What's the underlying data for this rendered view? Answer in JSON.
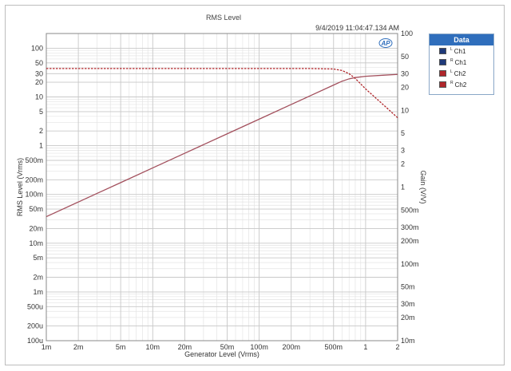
{
  "chart_data": {
    "type": "line",
    "title": "RMS Level",
    "timestamp": "9/4/2019 11:04:47.134 AM",
    "xlabel": "Generator Level (Vrms)",
    "ylabel_left": "RMS Level (Vrms)",
    "ylabel_right": "Gain (V/V)",
    "xscale": "log",
    "yscale_left": "log",
    "yscale_right": "log",
    "xlim": [
      0.001,
      2
    ],
    "ylim_left": [
      0.0001,
      200
    ],
    "ylim_right": [
      0.01,
      100
    ],
    "grid": true,
    "legend_position": "right",
    "x_ticks": [
      {
        "v": 0.001,
        "label": "1m"
      },
      {
        "v": 0.002,
        "label": "2m"
      },
      {
        "v": 0.005,
        "label": "5m"
      },
      {
        "v": 0.01,
        "label": "10m"
      },
      {
        "v": 0.02,
        "label": "20m"
      },
      {
        "v": 0.05,
        "label": "50m"
      },
      {
        "v": 0.1,
        "label": "100m"
      },
      {
        "v": 0.2,
        "label": "200m"
      },
      {
        "v": 0.5,
        "label": "500m"
      },
      {
        "v": 1,
        "label": "1"
      },
      {
        "v": 2,
        "label": "2"
      }
    ],
    "y_left_ticks": [
      {
        "v": 0.0001,
        "label": "100u"
      },
      {
        "v": 0.0002,
        "label": "200u"
      },
      {
        "v": 0.0005,
        "label": "500u"
      },
      {
        "v": 0.001,
        "label": "1m"
      },
      {
        "v": 0.002,
        "label": "2m"
      },
      {
        "v": 0.005,
        "label": "5m"
      },
      {
        "v": 0.01,
        "label": "10m"
      },
      {
        "v": 0.02,
        "label": "20m"
      },
      {
        "v": 0.05,
        "label": "50m"
      },
      {
        "v": 0.1,
        "label": "100m"
      },
      {
        "v": 0.2,
        "label": "200m"
      },
      {
        "v": 0.5,
        "label": "500m"
      },
      {
        "v": 1,
        "label": "1"
      },
      {
        "v": 2,
        "label": "2"
      },
      {
        "v": 5,
        "label": "5"
      },
      {
        "v": 10,
        "label": "10"
      },
      {
        "v": 20,
        "label": "20"
      },
      {
        "v": 30,
        "label": "30"
      },
      {
        "v": 50,
        "label": "50"
      },
      {
        "v": 100,
        "label": "100"
      }
    ],
    "y_right_ticks": [
      {
        "v": 0.01,
        "label": "10m"
      },
      {
        "v": 0.02,
        "label": "20m"
      },
      {
        "v": 0.03,
        "label": "30m"
      },
      {
        "v": 0.05,
        "label": "50m"
      },
      {
        "v": 0.1,
        "label": "100m"
      },
      {
        "v": 0.2,
        "label": "200m"
      },
      {
        "v": 0.3,
        "label": "300m"
      },
      {
        "v": 0.5,
        "label": "500m"
      },
      {
        "v": 1,
        "label": "1"
      },
      {
        "v": 2,
        "label": "2"
      },
      {
        "v": 3,
        "label": "3"
      },
      {
        "v": 5,
        "label": "5"
      },
      {
        "v": 10,
        "label": "10"
      },
      {
        "v": 20,
        "label": "20"
      },
      {
        "v": 30,
        "label": "30"
      },
      {
        "v": 50,
        "label": "50"
      },
      {
        "v": 100,
        "label": "100"
      }
    ],
    "legend": {
      "header": "Data",
      "items": [
        {
          "channel": "L",
          "name": "Ch1",
          "color": "#1f3a7a"
        },
        {
          "channel": "R",
          "name": "Ch1",
          "color": "#1f3a7a"
        },
        {
          "channel": "L",
          "name": "Ch2",
          "color": "#b0262b"
        },
        {
          "channel": "R",
          "name": "Ch2",
          "color": "#b0262b"
        }
      ]
    },
    "series": [
      {
        "axis": "left",
        "style": "solid",
        "color": "#a3505d",
        "x": [
          0.001,
          0.002,
          0.005,
          0.01,
          0.02,
          0.05,
          0.1,
          0.2,
          0.3,
          0.5,
          0.6,
          0.7,
          0.8,
          1,
          1.5,
          2
        ],
        "y": [
          0.035,
          0.07,
          0.175,
          0.35,
          0.7,
          1.75,
          3.5,
          7,
          10.5,
          17.5,
          21,
          23.5,
          25,
          26.5,
          28,
          29
        ]
      },
      {
        "axis": "right",
        "style": "dashed",
        "color": "#b0262b",
        "x": [
          0.001,
          0.01,
          0.1,
          0.3,
          0.5,
          0.6,
          0.7,
          0.8,
          1,
          1.5,
          2
        ],
        "y": [
          35,
          35,
          35,
          35,
          34.5,
          33,
          30,
          26,
          19,
          11.5,
          8
        ]
      }
    ]
  }
}
